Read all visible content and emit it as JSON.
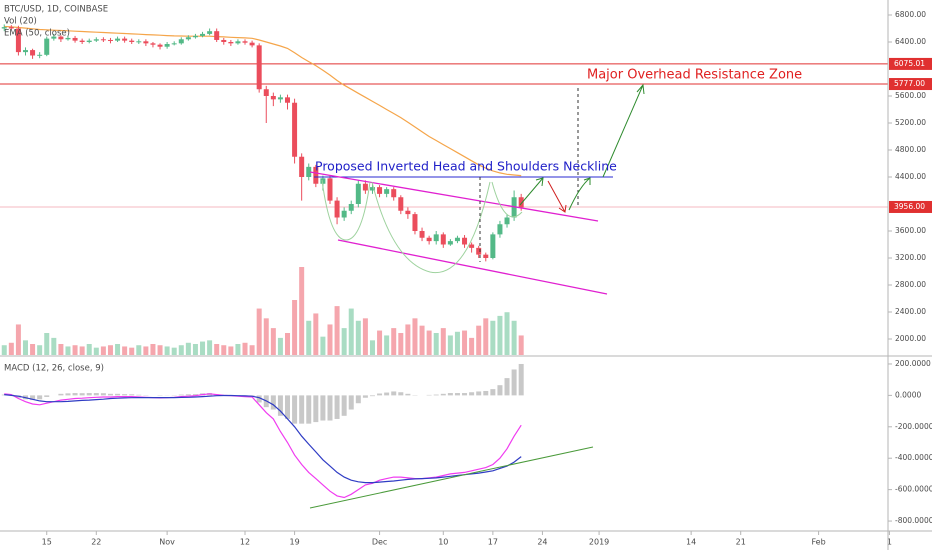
{
  "chart_data": [
    {
      "type": "candlestick",
      "title": "BTC/USD, 1D, COINBASE",
      "indicators": [
        "Vol (20)",
        "EMA (50, close)"
      ],
      "x": [
        -6,
        -5,
        -4,
        -3,
        -2,
        -1,
        0,
        1,
        2,
        3,
        4,
        5,
        6,
        7,
        8,
        9,
        10,
        11,
        12,
        13,
        14,
        15,
        16,
        17,
        18,
        19,
        20,
        21,
        22,
        23,
        24,
        25,
        26,
        27,
        28,
        29,
        30,
        31,
        32,
        33,
        34,
        35,
        36,
        37,
        38,
        39,
        40,
        41,
        42,
        43,
        44,
        45,
        46,
        47,
        48,
        49,
        50,
        51,
        52,
        53,
        54,
        55,
        56,
        57,
        58,
        59,
        60,
        61,
        62,
        63,
        64,
        65,
        66,
        67
      ],
      "open": [
        6600,
        6620,
        6600,
        6250,
        6280,
        6200,
        6210,
        6450,
        6480,
        6440,
        6460,
        6420,
        6400,
        6420,
        6440,
        6430,
        6420,
        6450,
        6420,
        6400,
        6410,
        6380,
        6360,
        6330,
        6370,
        6380,
        6440,
        6470,
        6490,
        6520,
        6560,
        6430,
        6400,
        6380,
        6410,
        6390,
        6350,
        5700,
        5600,
        5550,
        5580,
        5500,
        4700,
        4400,
        4550,
        4300,
        4380,
        4050,
        3800,
        3900,
        4000,
        4300,
        4200,
        4250,
        4150,
        4220,
        4100,
        3900,
        3850,
        3600,
        3500,
        3450,
        3550,
        3400,
        3450,
        3500,
        3400,
        3350,
        3250,
        3200,
        3550,
        3700,
        3800,
        4100
      ],
      "high": [
        6660,
        6650,
        6640,
        6320,
        6300,
        6250,
        6480,
        6520,
        6500,
        6490,
        6490,
        6450,
        6450,
        6470,
        6470,
        6460,
        6480,
        6480,
        6450,
        6440,
        6440,
        6400,
        6380,
        6400,
        6410,
        6470,
        6500,
        6520,
        6550,
        6600,
        6600,
        6460,
        6430,
        6440,
        6440,
        6420,
        6380,
        5750,
        5650,
        5620,
        5620,
        5560,
        4750,
        4600,
        4580,
        4420,
        4420,
        4100,
        3950,
        4050,
        4350,
        4350,
        4300,
        4280,
        4250,
        4250,
        4130,
        3950,
        3880,
        3650,
        3530,
        3600,
        3580,
        3480,
        3530,
        3540,
        3430,
        3380,
        3280,
        3580,
        3750,
        3850,
        4200,
        4150
      ],
      "low": [
        6560,
        6580,
        6200,
        6200,
        6150,
        6160,
        6190,
        6420,
        6400,
        6420,
        6390,
        6370,
        6380,
        6400,
        6400,
        6380,
        6400,
        6390,
        6370,
        6370,
        6340,
        6320,
        6290,
        6300,
        6350,
        6360,
        6420,
        6450,
        6470,
        6500,
        6400,
        6360,
        6340,
        6360,
        6360,
        6320,
        5650,
        5200,
        5450,
        5500,
        5400,
        4600,
        4050,
        4350,
        4250,
        4200,
        4000,
        3700,
        3750,
        3850,
        3950,
        4150,
        4150,
        4100,
        4100,
        4050,
        3850,
        3780,
        3550,
        3450,
        3400,
        3400,
        3350,
        3380,
        3420,
        3350,
        3280,
        3200,
        3150,
        3180,
        3500,
        3650,
        3750,
        3900
      ],
      "close": [
        6620,
        6600,
        6250,
        6280,
        6200,
        6210,
        6450,
        6480,
        6440,
        6460,
        6420,
        6400,
        6420,
        6440,
        6430,
        6420,
        6450,
        6420,
        6400,
        6410,
        6380,
        6360,
        6330,
        6370,
        6380,
        6440,
        6470,
        6490,
        6520,
        6560,
        6430,
        6400,
        6380,
        6410,
        6390,
        6350,
        5700,
        5600,
        5550,
        5580,
        5500,
        4700,
        4400,
        4550,
        4300,
        4380,
        4050,
        3800,
        3900,
        4000,
        4300,
        4200,
        4250,
        4150,
        4220,
        4100,
        3900,
        3850,
        3600,
        3500,
        3450,
        3550,
        3400,
        3450,
        3500,
        3400,
        3350,
        3250,
        3200,
        3550,
        3700,
        3800,
        4100,
        3950
      ],
      "volume": [
        8,
        10,
        25,
        12,
        9,
        8,
        18,
        14,
        9,
        7,
        8,
        7,
        9,
        6,
        7,
        8,
        9,
        7,
        6,
        8,
        7,
        9,
        8,
        7,
        6,
        8,
        10,
        9,
        11,
        12,
        9,
        8,
        7,
        9,
        10,
        8,
        38,
        30,
        22,
        14,
        18,
        45,
        72,
        28,
        34,
        15,
        25,
        40,
        22,
        38,
        28,
        30,
        12,
        20,
        16,
        22,
        18,
        25,
        30,
        24,
        20,
        18,
        22,
        16,
        19,
        20,
        14,
        24,
        30,
        28,
        32,
        35,
        28,
        16
      ],
      "up_color": "#53b987",
      "down_color": "#eb4d5c",
      "lines": [
        {
          "color": "#f5a54a",
          "values": [
            6630,
            6625,
            6615,
            6605,
            6595,
            6585,
            6580,
            6575,
            6570,
            6565,
            6560,
            6555,
            6550,
            6545,
            6540,
            6535,
            6530,
            6525,
            6520,
            6515,
            6510,
            6505,
            6500,
            6495,
            6490,
            6488,
            6486,
            6485,
            6485,
            6485,
            6480,
            6475,
            6470,
            6465,
            6460,
            6455,
            6430,
            6400,
            6370,
            6340,
            6305,
            6240,
            6170,
            6110,
            6050,
            5980,
            5910,
            5830,
            5760,
            5700,
            5640,
            5580,
            5520,
            5460,
            5400,
            5340,
            5280,
            5210,
            5140,
            5070,
            5000,
            4940,
            4880,
            4820,
            4760,
            4700,
            4640,
            4580,
            4530,
            4490,
            4460,
            4440,
            4430,
            4420
          ]
        }
      ],
      "price_lines": [
        {
          "value": 6075.01,
          "label": "6075.01",
          "color": "#e03030"
        },
        {
          "value": 5777,
          "label": "5777.00",
          "color": "#e03030"
        },
        {
          "value": 3956,
          "label": "3956.00",
          "color": "#f5b8c0"
        }
      ],
      "annotations": [
        "Major Overhead Resistance Zone",
        "Proposed Inverted Head and Shoulders Neckline"
      ],
      "xlim": [
        -6.6,
        118.8
      ],
      "xticks": [
        {
          "value": 0,
          "label": "15"
        },
        {
          "value": 7,
          "label": "22"
        },
        {
          "value": 17,
          "label": "Nov"
        },
        {
          "value": 28,
          "label": "12"
        },
        {
          "value": 35,
          "label": "19"
        },
        {
          "value": 47,
          "label": "Dec"
        },
        {
          "value": 56,
          "label": "10"
        },
        {
          "value": 63,
          "label": "17"
        },
        {
          "value": 70,
          "label": "24"
        },
        {
          "value": 78,
          "label": "2019"
        },
        {
          "value": 91,
          "label": "14"
        },
        {
          "value": 98,
          "label": "21"
        },
        {
          "value": 109,
          "label": "Feb"
        },
        {
          "value": 119,
          "label": "1"
        }
      ],
      "ylim": [
        1763,
        7022
      ],
      "yticks": [
        {
          "value": 6800,
          "label": "6800.00"
        },
        {
          "value": 6400,
          "label": "6400.00"
        },
        {
          "value": 5600,
          "label": "5600.00"
        },
        {
          "value": 5200,
          "label": "5200.00"
        },
        {
          "value": 4800,
          "label": "4800.00"
        },
        {
          "value": 4400,
          "label": "4400.00"
        },
        {
          "value": 3600,
          "label": "3600.00"
        },
        {
          "value": 3200,
          "label": "3200.00"
        },
        {
          "value": 2800,
          "label": "2800.00"
        },
        {
          "value": 2400,
          "label": "2400.00"
        },
        {
          "value": 2000,
          "label": "2000.00"
        }
      ]
    },
    {
      "type": "macd",
      "title": "MACD (12, 26, close, 9)",
      "series": [
        {
          "color": "#f03cf0",
          "values": [
            10,
            5,
            -20,
            -40,
            -55,
            -60,
            -50,
            -40,
            -30,
            -25,
            -20,
            -18,
            -15,
            -12,
            -10,
            -10,
            -8,
            -8,
            -8,
            -10,
            -12,
            -14,
            -16,
            -15,
            -12,
            -8,
            -5,
            -2,
            5,
            10,
            5,
            0,
            -2,
            -5,
            -8,
            -10,
            -60,
            -110,
            -150,
            -230,
            -300,
            -380,
            -440,
            -490,
            -530,
            -570,
            -610,
            -640,
            -650,
            -630,
            -600,
            -570,
            -560,
            -540,
            -530,
            -520,
            -520,
            -525,
            -530,
            -530,
            -525,
            -520,
            -510,
            -500,
            -495,
            -490,
            -480,
            -470,
            -460,
            -440,
            -400,
            -340,
            -260,
            -190
          ]
        },
        {
          "color": "#2f3cc4",
          "values": [
            5,
            0,
            -5,
            -15,
            -25,
            -35,
            -40,
            -40,
            -40,
            -38,
            -35,
            -32,
            -30,
            -27,
            -24,
            -20,
            -18,
            -16,
            -15,
            -14,
            -14,
            -14,
            -14,
            -14,
            -14,
            -13,
            -12,
            -10,
            -8,
            -5,
            -2,
            -1,
            -1,
            -2,
            -3,
            -5,
            -15,
            -35,
            -60,
            -100,
            -150,
            -200,
            -260,
            -310,
            -360,
            -410,
            -450,
            -490,
            -520,
            -540,
            -550,
            -555,
            -555,
            -552,
            -548,
            -545,
            -540,
            -535,
            -532,
            -530,
            -528,
            -525,
            -520,
            -515,
            -510,
            -505,
            -500,
            -495,
            -488,
            -480,
            -465,
            -450,
            -425,
            -390
          ]
        }
      ],
      "histogram": {
        "color": "#c8c8c8",
        "values": [
          5,
          5,
          -15,
          -25,
          -30,
          -25,
          -10,
          0,
          10,
          13,
          15,
          14,
          15,
          15,
          14,
          10,
          10,
          8,
          7,
          4,
          2,
          0,
          -2,
          -1,
          2,
          5,
          7,
          8,
          13,
          15,
          7,
          1,
          -1,
          -3,
          -5,
          -5,
          -45,
          -75,
          -90,
          -130,
          -150,
          -180,
          -180,
          -180,
          -170,
          -160,
          -160,
          -150,
          -130,
          -90,
          -50,
          -15,
          -5,
          12,
          18,
          25,
          20,
          10,
          2,
          0,
          3,
          5,
          10,
          15,
          15,
          15,
          20,
          25,
          28,
          40,
          65,
          110,
          165,
          200
        ]
      },
      "ylim": [
        -857,
        238
      ],
      "yticks": [
        {
          "value": 200,
          "label": "200.0000"
        },
        {
          "value": 0,
          "label": "0.0000"
        },
        {
          "value": -200,
          "label": "-200.0000"
        },
        {
          "value": -400,
          "label": "-400.0000"
        },
        {
          "value": -600,
          "label": "-600.0000"
        },
        {
          "value": -800,
          "label": "-800.0000"
        }
      ]
    }
  ]
}
